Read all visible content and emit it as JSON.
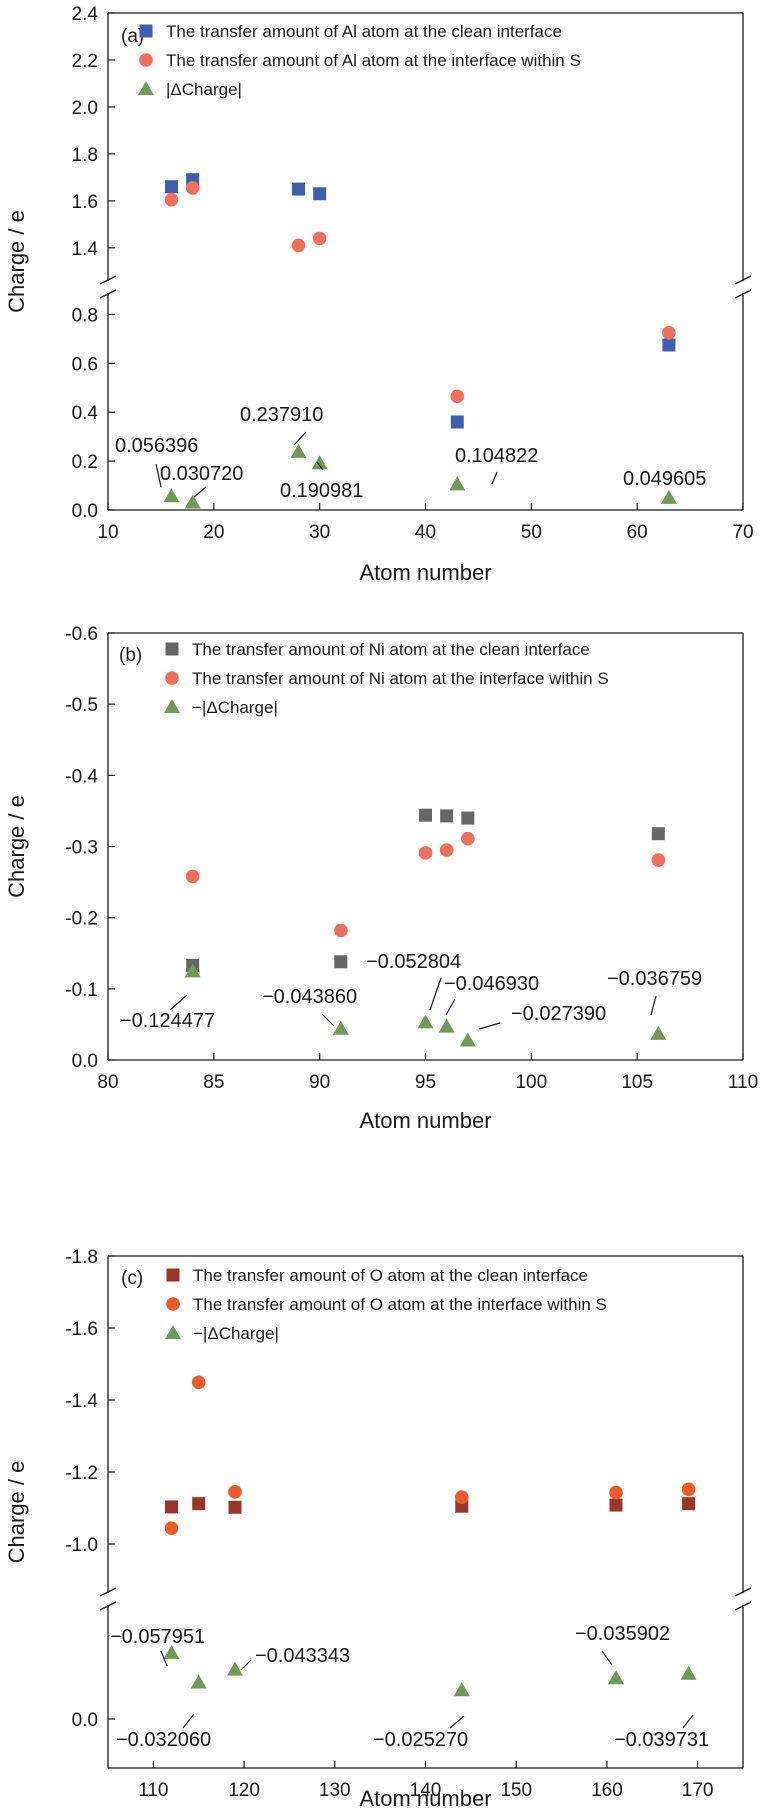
{
  "chart_data": [
    {
      "type": "scatter",
      "panel_label": "(a)",
      "xlabel": "Atom number",
      "ylabel": "Charge / e",
      "xlim": [
        10,
        70
      ],
      "x_ticks": [
        "10",
        "20",
        "30",
        "40",
        "50",
        "60",
        "70"
      ],
      "y_axis_break": true,
      "y_ticks": [
        "0.0",
        "0.2",
        "0.4",
        "0.6",
        "0.8",
        "1.4",
        "1.6",
        "1.8",
        "2.0",
        "2.2",
        "2.4"
      ],
      "legend_position": "top-left",
      "series": [
        {
          "name": "The transfer amount of Al atom at the clean interface",
          "marker": "square",
          "color": "#3c5fb0",
          "points": [
            [
              16,
              1.66
            ],
            [
              18,
              1.69
            ],
            [
              28,
              1.65
            ],
            [
              30,
              1.63
            ],
            [
              43,
              0.36
            ],
            [
              63,
              0.675
            ]
          ]
        },
        {
          "name": "The transfer amount of Al atom at the interface within S",
          "marker": "circle",
          "color": "#ef6f5a",
          "points": [
            [
              16,
              1.605
            ],
            [
              18,
              1.655
            ],
            [
              28,
              1.41
            ],
            [
              30,
              1.44
            ],
            [
              43,
              0.465
            ],
            [
              63,
              0.725
            ]
          ]
        },
        {
          "name": "|ΔCharge|",
          "marker": "triangle",
          "color": "#6f9a55",
          "points": [
            [
              16,
              0.056396
            ],
            [
              18,
              0.03072
            ],
            [
              28,
              0.23791
            ],
            [
              30,
              0.190981
            ],
            [
              43,
              0.104822
            ],
            [
              63,
              0.049605
            ]
          ]
        }
      ],
      "annotations": [
        "0.056396",
        "0.030720",
        "0.237910",
        "0.190981",
        "0.104822",
        "0.049605"
      ]
    },
    {
      "type": "scatter",
      "panel_label": "(b)",
      "xlabel": "Atom number",
      "ylabel": "Charge / e",
      "xlim": [
        80,
        110
      ],
      "ylim": [
        0.0,
        -0.6
      ],
      "x_ticks": [
        "80",
        "85",
        "90",
        "95",
        "100",
        "105",
        "110"
      ],
      "y_ticks": [
        "0.0",
        "-0.1",
        "-0.2",
        "-0.3",
        "-0.4",
        "-0.5",
        "-0.6"
      ],
      "legend_position": "top-left",
      "series": [
        {
          "name": "The transfer amount of Ni atom at the clean interface",
          "marker": "square",
          "color": "#666666",
          "points": [
            [
              84,
              -0.133
            ],
            [
              91,
              -0.138
            ],
            [
              95,
              -0.344
            ],
            [
              96,
              -0.343
            ],
            [
              97,
              -0.34
            ],
            [
              106,
              -0.318
            ]
          ]
        },
        {
          "name": "The transfer amount of Ni atom at the interface within S",
          "marker": "circle",
          "color": "#ef6f5a",
          "points": [
            [
              84,
              -0.258
            ],
            [
              91,
              -0.182
            ],
            [
              95,
              -0.291
            ],
            [
              96,
              -0.295
            ],
            [
              97,
              -0.311
            ],
            [
              106,
              -0.281
            ]
          ]
        },
        {
          "name": "−|ΔCharge|",
          "marker": "triangle",
          "color": "#6f9a55",
          "points": [
            [
              84,
              -0.124477
            ],
            [
              91,
              -0.04386
            ],
            [
              95,
              -0.052804
            ],
            [
              96,
              -0.04693
            ],
            [
              97,
              -0.02739
            ],
            [
              106,
              -0.036759
            ]
          ]
        }
      ],
      "annotations": [
        "−0.124477",
        "−0.043860",
        "−0.052804",
        "−0.046930",
        "−0.027390",
        "−0.036759"
      ]
    },
    {
      "type": "scatter",
      "panel_label": "(c)",
      "xlabel": "Atom number",
      "ylabel": "Charge / e",
      "xlim": [
        105,
        175
      ],
      "x_ticks": [
        "110",
        "120",
        "130",
        "140",
        "150",
        "160",
        "170"
      ],
      "y_axis_break": true,
      "y_ticks": [
        "0.0",
        "-1.0",
        "-1.2",
        "-1.4",
        "-1.6",
        "-1.8"
      ],
      "legend_position": "top-left",
      "series": [
        {
          "name": "The transfer amount of O atom at the clean interface",
          "marker": "square",
          "color": "#9b3527",
          "points": [
            [
              112,
              -1.103
            ],
            [
              115,
              -1.112
            ],
            [
              119,
              -1.102
            ],
            [
              144,
              -1.105
            ],
            [
              161,
              -1.108
            ],
            [
              169,
              -1.112
            ]
          ]
        },
        {
          "name": "The transfer amount of O atom at the interface within S",
          "marker": "circle",
          "color": "#f05a28",
          "points": [
            [
              112,
              -1.044
            ],
            [
              115,
              -1.449
            ],
            [
              119,
              -1.145
            ],
            [
              144,
              -1.13
            ],
            [
              161,
              -1.143
            ],
            [
              169,
              -1.152
            ]
          ]
        },
        {
          "name": "−|ΔCharge|",
          "marker": "triangle",
          "color": "#6f9a55",
          "points": [
            [
              112,
              -0.057951
            ],
            [
              115,
              -0.03206
            ],
            [
              119,
              -0.043343
            ],
            [
              144,
              -0.02527
            ],
            [
              161,
              -0.035902
            ],
            [
              169,
              -0.039731
            ]
          ]
        }
      ],
      "annotations": [
        "−0.057951",
        "−0.032060",
        "−0.043343",
        "−0.025270",
        "−0.035902",
        "−0.039731"
      ]
    }
  ]
}
